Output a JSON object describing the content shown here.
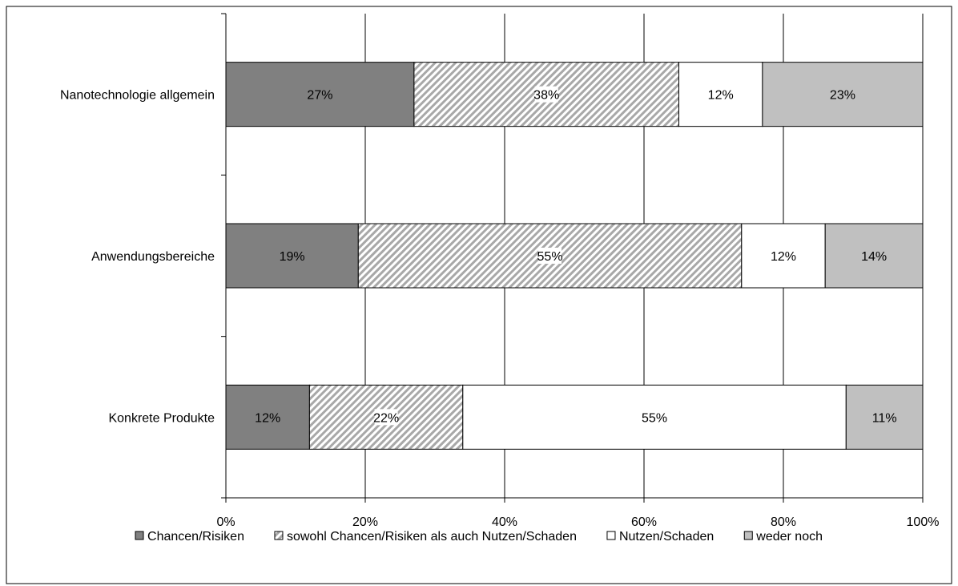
{
  "chart_data": {
    "type": "bar",
    "orientation": "horizontal",
    "stacked": true,
    "categories": [
      "Nanotechnologie allgemein",
      "Anwendungsbereiche",
      "Konkrete Produkte"
    ],
    "series": [
      {
        "name": "Chancen/Risiken",
        "values": [
          27,
          19,
          12
        ],
        "color": "#808080",
        "pattern": "solid",
        "label_color": "#ffffff"
      },
      {
        "name": "sowohl Chancen/Risiken als auch Nutzen/Schaden",
        "values": [
          38,
          55,
          22
        ],
        "color": "#c0c0c0",
        "pattern": "diagonal-hatch",
        "label_color": "#000000"
      },
      {
        "name": "Nutzen/Schaden",
        "values": [
          12,
          12,
          55
        ],
        "color": "#ffffff",
        "pattern": "solid",
        "label_color": "#000000"
      },
      {
        "name": "weder noch",
        "values": [
          23,
          14,
          11
        ],
        "color": "#c0c0c0",
        "pattern": "solid",
        "label_color": "#000000"
      }
    ],
    "data_labels": [
      [
        "27%",
        "19%",
        "12%"
      ],
      [
        "38%",
        "55%",
        "22%"
      ],
      [
        "12%",
        "12%",
        "55%"
      ],
      [
        "23%",
        "14%",
        "11%"
      ]
    ],
    "x_ticks": [
      "0%",
      "20%",
      "40%",
      "60%",
      "80%",
      "100%"
    ],
    "xlim": [
      0,
      100
    ],
    "grid": true,
    "legend_position": "bottom",
    "title": "",
    "xlabel": "",
    "ylabel": ""
  }
}
